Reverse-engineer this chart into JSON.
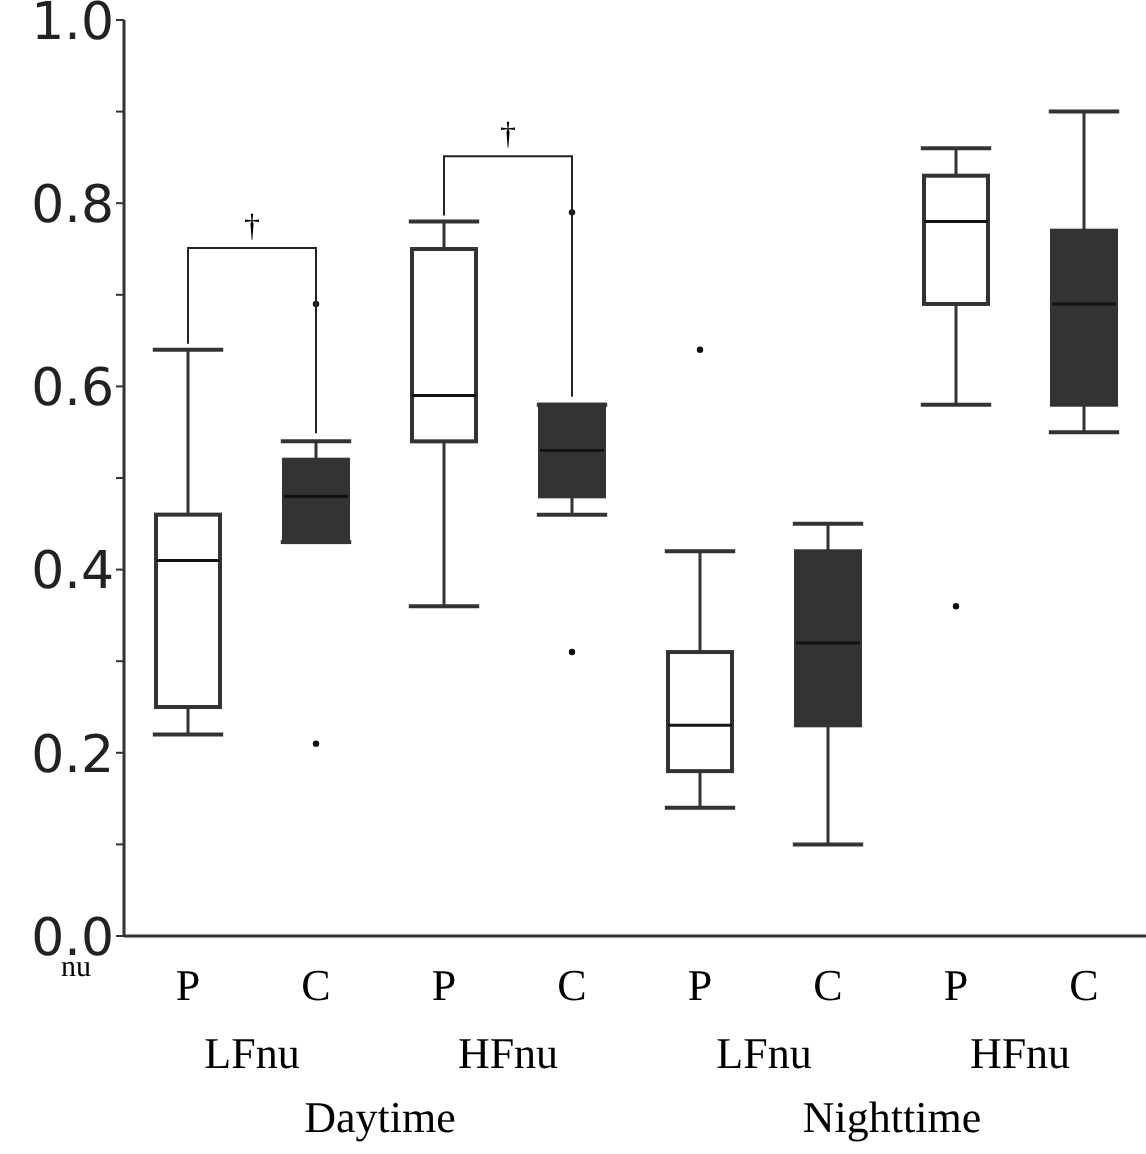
{
  "chart_data": {
    "type": "box",
    "ylabel": "nu",
    "categories": [
      "P",
      "C",
      "P",
      "C",
      "P",
      "C",
      "P",
      "C"
    ],
    "colors": [
      "#ffffff",
      "#333333",
      "#ffffff",
      "#333333",
      "#ffffff",
      "#333333",
      "#ffffff",
      "#333333"
    ],
    "boxes": [
      {
        "low": 0.22,
        "q1": 0.25,
        "median": 0.41,
        "q3": 0.46,
        "high": 0.64
      },
      {
        "low": 0.43,
        "q1": 0.43,
        "median": 0.48,
        "q3": 0.52,
        "high": 0.54,
        "outliers": [
          0.69,
          0.21
        ]
      },
      {
        "low": 0.36,
        "q1": 0.54,
        "median": 0.59,
        "q3": 0.75,
        "high": 0.78
      },
      {
        "low": 0.46,
        "q1": 0.48,
        "median": 0.53,
        "q3": 0.58,
        "high": 0.58,
        "outliers": [
          0.79,
          0.31
        ]
      },
      {
        "low": 0.14,
        "q1": 0.18,
        "median": 0.23,
        "q3": 0.31,
        "high": 0.42,
        "outliers": [
          0.64
        ]
      },
      {
        "low": 0.1,
        "q1": 0.23,
        "median": 0.32,
        "q3": 0.42,
        "high": 0.45
      },
      {
        "low": 0.58,
        "q1": 0.69,
        "median": 0.78,
        "q3": 0.83,
        "high": 0.86,
        "outliers": [
          0.36
        ]
      },
      {
        "low": 0.55,
        "q1": 0.58,
        "median": 0.69,
        "q3": 0.77,
        "high": 0.9
      }
    ],
    "ylim": [
      0,
      1
    ],
    "yticks": [
      {
        "value": 0,
        "label": "0.0"
      },
      {
        "value": 0.1,
        "label": null
      },
      {
        "value": 0.2,
        "label": "0.2"
      },
      {
        "value": 0.3,
        "label": null
      },
      {
        "value": 0.4,
        "label": "0.4"
      },
      {
        "value": 0.5,
        "label": null
      },
      {
        "value": 0.6,
        "label": "0.6"
      },
      {
        "value": 0.7,
        "label": null
      },
      {
        "value": 0.8,
        "label": "0.8"
      },
      {
        "value": 0.9,
        "label": null
      },
      {
        "value": 1,
        "label": "1.0"
      }
    ],
    "grid": false,
    "annotations": [
      "†",
      "†",
      "LFnu",
      "HFnu",
      "LFnu",
      "HFnu",
      "Daytime",
      "Nighttime"
    ]
  }
}
